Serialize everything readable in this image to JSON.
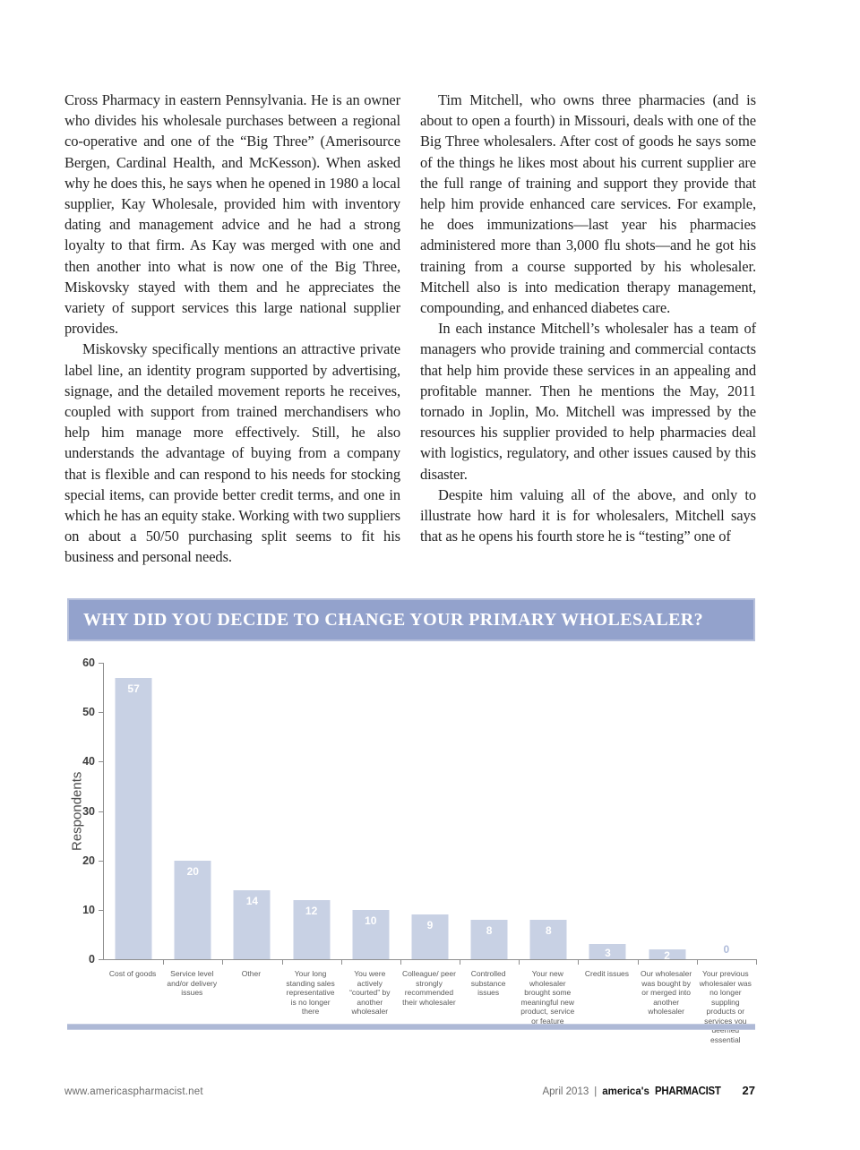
{
  "article": {
    "columns": [
      {
        "name": "left",
        "paragraphs": [
          {
            "indent": false,
            "text": "Cross Pharmacy in eastern Pennsylvania. He is an owner who divides his wholesale purchases between a regional co-operative and one of the “Big Three” (Amerisource Bergen, Cardinal Health, and McKesson). When asked why he does this, he says when he opened in 1980 a local supplier, Kay Wholesale, provided him with inventory dating and management advice and he had a strong loyalty to that firm. As Kay was merged with one and then another into what is now one of the Big Three, Miskovsky stayed with them and he appreciates the variety of support services this large national supplier provides."
          },
          {
            "indent": true,
            "text": "Miskovsky specifically mentions an attractive private label line, an identity program supported by advertising, signage, and the detailed movement reports he receives, coupled with support from trained merchandisers who help him manage more effectively. Still, he also understands the advantage of buying from a company that is flexible and can respond to his needs for stocking special items, can provide better credit terms, and one in which he has an equity stake. Working with two suppliers on about a 50/50 purchasing split seems to fit his business and personal needs."
          }
        ]
      },
      {
        "name": "right",
        "paragraphs": [
          {
            "indent": true,
            "text": "Tim Mitchell, who owns three pharmacies (and is about to open a fourth) in Missouri, deals with one of the Big Three wholesalers. After cost of goods he says some of the things he likes most about his current supplier are the full range of training and support they provide that help him provide enhanced care services. For example, he does immunizations—last year his pharmacies administered more than 3,000 flu shots—and he got his training from a course supported by his wholesaler. Mitchell also is into medication therapy management, compounding, and enhanced diabetes care."
          },
          {
            "indent": true,
            "text": "In each instance Mitchell’s wholesaler has a team of managers who provide training and commercial contacts that help him provide these services in an appealing and profitable manner. Then he mentions the May, 2011 tornado in Joplin, Mo. Mitchell was impressed by the resources his supplier provided to help pharmacies deal with logistics, regulatory, and other issues caused by this disaster."
          },
          {
            "indent": true,
            "text": "Despite him valuing all of the above, and only to illustrate how hard it is for wholesalers, Mitchell says that as he opens his fourth store he is “testing” one of"
          }
        ]
      }
    ]
  },
  "chart_data": {
    "type": "bar",
    "title": "WHY DID YOU DECIDE TO CHANGE YOUR PRIMARY WHOLESALER?",
    "xlabel": "",
    "ylabel": "Respondents",
    "ylim": [
      0,
      60
    ],
    "yticks": [
      0,
      10,
      20,
      30,
      40,
      50,
      60
    ],
    "grid": false,
    "legend": false,
    "categories": [
      "Cost of goods",
      "Service level and/or delivery issues",
      "Other",
      "Your long standing sales representative is no longer there",
      "You were actively “courted” by another wholesaler",
      "Colleague/ peer strongly recommended their wholesaler",
      "Controlled substance issues",
      "Your new wholesaler brought some meaningful new product, service or feature",
      "Credit issues",
      "Our wholesaler was bought by or merged into another wholesaler",
      "Your previous wholesaler was no longer suppling products or services you deemed essential"
    ],
    "values": [
      57,
      20,
      14,
      12,
      10,
      9,
      8,
      8,
      3,
      2,
      0
    ],
    "colors": {
      "bar_fill": "#c8d1e4",
      "title_band": "#93a2cc",
      "bottom_band": "#aeb9d6",
      "value_label": "#ffffff",
      "zero_label": "#b0bcda",
      "axis": "#8f8f8f"
    }
  },
  "footer": {
    "url": "www.americaspharmacist.net",
    "date": "April 2013",
    "separator": "|",
    "brand_prefix": "america's",
    "brand_name": "PHARMACIST",
    "page_number": "27"
  }
}
